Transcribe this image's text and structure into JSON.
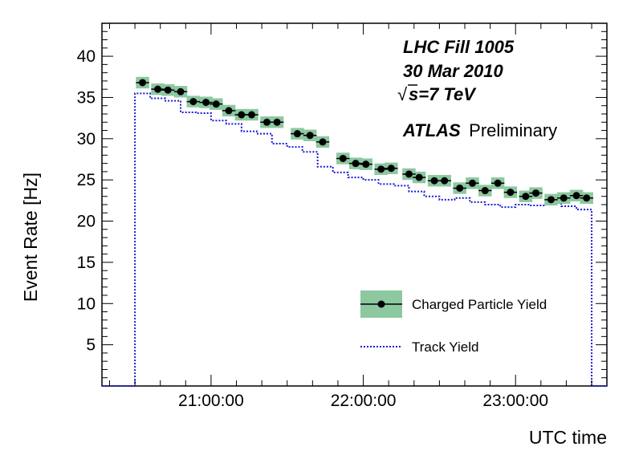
{
  "chart_data": {
    "type": "line",
    "xlabel": "UTC time",
    "ylabel": "Event Rate [Hz]",
    "xlim": [
      "20:17",
      "23:36"
    ],
    "ylim": [
      0,
      44
    ],
    "x_ticks": [
      {
        "time": "21:00",
        "label": "21:00:00"
      },
      {
        "time": "22:00",
        "label": "22:00:00"
      },
      {
        "time": "23:00",
        "label": "23:00:00"
      }
    ],
    "y_ticks": [
      {
        "value": 5,
        "label": "5"
      },
      {
        "value": 10,
        "label": "10"
      },
      {
        "value": 15,
        "label": "15"
      },
      {
        "value": 20,
        "label": "20"
      },
      {
        "value": 25,
        "label": "25"
      },
      {
        "value": 30,
        "label": "30"
      },
      {
        "value": 35,
        "label": "35"
      },
      {
        "value": 40,
        "label": "40"
      }
    ],
    "grid": false,
    "legend_position": "bottom-right",
    "annotations": {
      "fill": "LHC Fill 1005",
      "date": "30 Mar 2010",
      "energy_sqrt": "√",
      "energy_rest": "s=7 TeV",
      "experiment": "ATLAS",
      "status": "Preliminary"
    },
    "bin_edges": [
      "20:30",
      "20:36",
      "20:42",
      "20:48",
      "20:54",
      "21:00",
      "21:06",
      "21:12",
      "21:18",
      "21:24",
      "21:30",
      "21:36",
      "21:42",
      "21:48",
      "21:54",
      "22:00",
      "22:06",
      "22:12",
      "22:18",
      "22:24",
      "22:30",
      "22:36",
      "22:42",
      "22:48",
      "22:54",
      "23:00",
      "23:06",
      "23:12",
      "23:18",
      "23:24",
      "23:30"
    ],
    "series": [
      {
        "name": "Charged Particle Yield",
        "style": "points-with-band",
        "color": "#000000",
        "band_color": "#8cc8a0",
        "uncertainty": 0.7,
        "values": [
          36.8,
          36.0,
          35.9,
          35.7,
          34.5,
          34.4,
          34.2,
          33.4,
          32.9,
          32.9,
          32.0,
          32.0,
          30.6,
          30.4,
          29.6,
          27.6,
          27.0,
          26.9,
          26.3,
          26.4,
          25.7,
          25.3,
          24.9,
          24.9,
          24.0,
          24.6,
          23.7,
          24.6,
          23.5,
          23.0,
          23.4,
          22.6,
          22.8,
          23.1,
          22.8
        ],
        "times": [
          "20:33",
          "20:39",
          "20:43",
          "20:48",
          "20:53",
          "20:58",
          "21:02",
          "21:07",
          "21:12",
          "21:16",
          "21:22",
          "21:26",
          "21:34",
          "21:39",
          "21:44",
          "21:52",
          "21:57",
          "22:01",
          "22:07",
          "22:11",
          "22:18",
          "22:22",
          "22:28",
          "22:32",
          "22:38",
          "22:43",
          "22:48",
          "22:53",
          "22:58",
          "23:04",
          "23:08",
          "23:14",
          "23:19",
          "23:24",
          "23:28"
        ]
      },
      {
        "name": "Track Yield",
        "style": "dotted-step",
        "color": "#1a1ad8",
        "values": [
          35.5,
          34.9,
          34.6,
          33.2,
          33.1,
          32.2,
          31.8,
          30.9,
          30.6,
          29.4,
          29.0,
          28.4,
          26.6,
          25.9,
          25.3,
          25.0,
          24.5,
          24.3,
          23.6,
          23.0,
          22.6,
          22.8,
          22.3,
          22.0,
          21.7,
          22.0,
          21.9,
          22.3,
          21.8,
          21.4
        ]
      }
    ]
  }
}
